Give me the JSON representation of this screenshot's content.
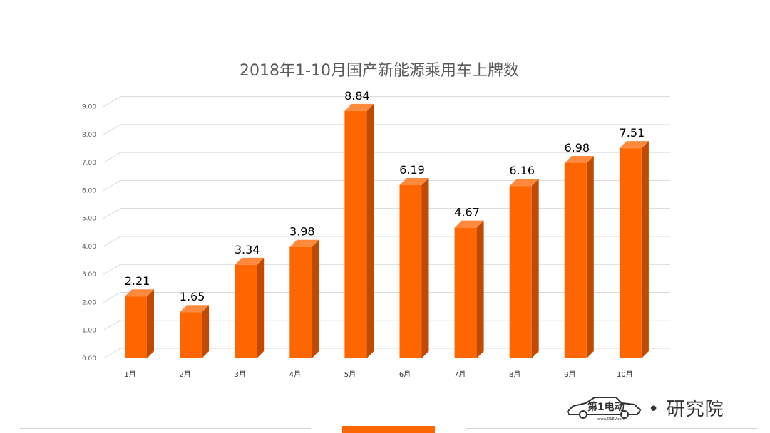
{
  "chart_data": {
    "type": "bar",
    "title": "2018年1-10月国产新能源乘用车上牌数",
    "categories": [
      "1月",
      "2月",
      "3月",
      "4月",
      "5月",
      "6月",
      "7月",
      "8月",
      "9月",
      "10月"
    ],
    "values": [
      2.21,
      1.65,
      3.34,
      3.98,
      8.84,
      6.19,
      4.67,
      6.16,
      6.98,
      7.51
    ],
    "value_labels": [
      "2.21",
      "1.65",
      "3.34",
      "3.98",
      "8.84",
      "6.19",
      "4.67",
      "6.16",
      "6.98",
      "7.51"
    ],
    "y_ticks": [
      "0.00",
      "1.00",
      "2.00",
      "3.00",
      "4.00",
      "5.00",
      "6.00",
      "7.00",
      "8.00",
      "9.00"
    ],
    "ylim": [
      0,
      9.0
    ],
    "grid": true,
    "bar_color": "#ff6600",
    "bar_side_color": "#c04a00",
    "bar_top_color": "#ff8a3d"
  },
  "logo": {
    "brand": "第1电动",
    "url": "www.D1EV.com",
    "dot": "•",
    "suffix": "研究院"
  }
}
